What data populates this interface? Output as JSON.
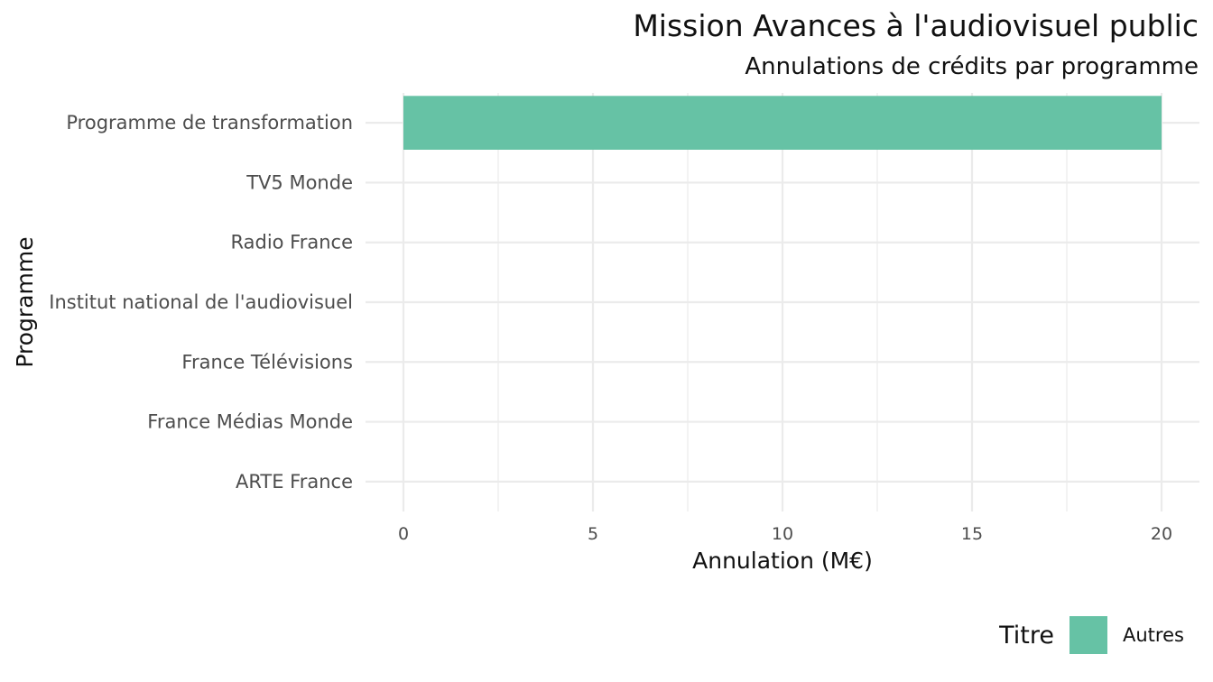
{
  "chart_data": {
    "type": "bar",
    "orientation": "horizontal",
    "title": "Mission Avances à l'audiovisuel public",
    "subtitle": "Annulations de crédits par programme",
    "xlabel": "Annulation (M€)",
    "ylabel": "Programme",
    "categories": [
      "Programme de transformation",
      "TV5 Monde",
      "Radio France",
      "Institut national de l'audiovisuel",
      "France Télévisions",
      "France Médias Monde",
      "ARTE France"
    ],
    "series": [
      {
        "name": "Autres",
        "color": "#66c2a5",
        "values": [
          20,
          0,
          0,
          0,
          0,
          0,
          0
        ]
      }
    ],
    "xlim": [
      0,
      20
    ],
    "xticks": [
      0,
      5,
      10,
      15,
      20
    ],
    "grid": true,
    "legend": {
      "title": "Titre",
      "position": "bottom-right"
    }
  }
}
